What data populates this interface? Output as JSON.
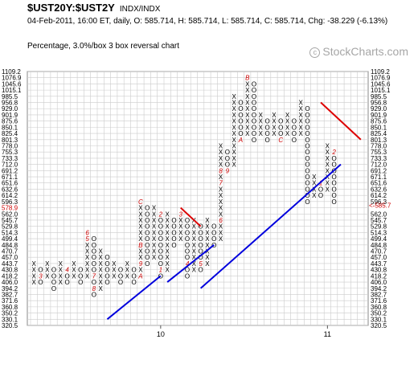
{
  "header": {
    "symbol": "$UST20Y:$UST2Y",
    "exchange": "INDX/INDX",
    "stats": "04-Feb-2011, 16:00 ET, daily, O: 585.714, H: 585.714, L: 585.714, C: 585.714, Chg: -38.229 (-6.13%)",
    "chart_type": "Percentage, 3.0%/box 3 box reversal chart",
    "watermark": "©StockCharts.com",
    "watermark_icon": "copyright-icon"
  },
  "colors": {
    "x_marks": "#000000",
    "o_marks": "#000000",
    "month_markers": "#cc0000",
    "support_lines": "#0000dd",
    "resistance_lines": "#dd0000",
    "grid": "#cccccc",
    "last_price": "#cc0000"
  },
  "chart_data": {
    "type": "point-and-figure",
    "box_size_percent": 3.0,
    "reversal_boxes": 3,
    "y_axis_scale": "log",
    "grid": true,
    "price_levels": [
      "1109.2",
      "1076.9",
      "1045.6",
      "1015.1",
      "985.5",
      "956.8",
      "929.0",
      "901.9",
      "875.6",
      "850.1",
      "825.4",
      "801.3",
      "778.0",
      "755.3",
      "733.3",
      "712.0",
      "691.2",
      "671.1",
      "651.6",
      "632.6",
      "614.2",
      "596.3",
      "578.9",
      "562.0",
      "545.7",
      "529.8",
      "514.3",
      "499.4",
      "484.8",
      "470.7",
      "457.0",
      "443.7",
      "430.8",
      "418.2",
      "406.0",
      "394.2",
      "382.7",
      "371.6",
      "360.8",
      "350.2",
      "330.1",
      "320.5"
    ],
    "last_price_label": "585.7",
    "last_price_value": 585.714,
    "previous_level": "578.9",
    "x_tick_labels": [
      {
        "label": "10",
        "column": 19
      },
      {
        "label": "11",
        "column": 44
      }
    ],
    "columns": [
      {
        "type": "X",
        "from": 34,
        "to": 31,
        "marks": {}
      },
      {
        "type": "O",
        "from": 32,
        "to": 34,
        "marks": {
          "33": "3"
        }
      },
      {
        "type": "X",
        "from": 33,
        "to": 31,
        "marks": {}
      },
      {
        "type": "O",
        "from": 32,
        "to": 35,
        "marks": {}
      },
      {
        "type": "X",
        "from": 34,
        "to": 31,
        "marks": {}
      },
      {
        "type": "O",
        "from": 32,
        "to": 34,
        "marks": {
          "32": "4"
        }
      },
      {
        "type": "X",
        "from": 33,
        "to": 31,
        "marks": {}
      },
      {
        "type": "O",
        "from": 32,
        "to": 34,
        "marks": {}
      },
      {
        "type": "X",
        "from": 33,
        "to": 26,
        "marks": {
          "26": "6",
          "27": "5"
        }
      },
      {
        "type": "O",
        "from": 27,
        "to": 36,
        "marks": {
          "33": "7",
          "35": "8"
        }
      },
      {
        "type": "X",
        "from": 35,
        "to": 29,
        "marks": {}
      },
      {
        "type": "O",
        "from": 30,
        "to": 34,
        "marks": {}
      },
      {
        "type": "X",
        "from": 33,
        "to": 31,
        "marks": {}
      },
      {
        "type": "O",
        "from": 32,
        "to": 34,
        "marks": {}
      },
      {
        "type": "X",
        "from": 33,
        "to": 31,
        "marks": {}
      },
      {
        "type": "O",
        "from": 32,
        "to": 34,
        "marks": {}
      },
      {
        "type": "X",
        "from": 33,
        "to": 21,
        "marks": {
          "21": "C",
          "28": "B",
          "31": "9",
          "33": "A"
        }
      },
      {
        "type": "O",
        "from": 22,
        "to": 31,
        "marks": {}
      },
      {
        "type": "X",
        "from": 30,
        "to": 22,
        "marks": {}
      },
      {
        "type": "O",
        "from": 23,
        "to": 33,
        "marks": {
          "23": "2",
          "32": "1"
        }
      },
      {
        "type": "X",
        "from": 32,
        "to": 23,
        "marks": {}
      },
      {
        "type": "O",
        "from": 24,
        "to": 28,
        "marks": {}
      },
      {
        "type": "X",
        "from": 27,
        "to": 23,
        "marks": {
          "23": "3"
        }
      },
      {
        "type": "O",
        "from": 24,
        "to": 33,
        "marks": {
          "31": "4"
        }
      },
      {
        "type": "X",
        "from": 32,
        "to": 24,
        "marks": {}
      },
      {
        "type": "O",
        "from": 25,
        "to": 32,
        "marks": {
          "31": "5"
        }
      },
      {
        "type": "X",
        "from": 31,
        "to": 24,
        "marks": {}
      },
      {
        "type": "O",
        "from": 25,
        "to": 28,
        "marks": {}
      },
      {
        "type": "X",
        "from": 27,
        "to": 12,
        "marks": {
          "24": "6",
          "18": "7",
          "16": "8"
        }
      },
      {
        "type": "O",
        "from": 13,
        "to": 16,
        "marks": {
          "16": "9"
        }
      },
      {
        "type": "X",
        "from": 15,
        "to": 4,
        "marks": {}
      },
      {
        "type": "O",
        "from": 5,
        "to": 11,
        "marks": {
          "11": "A"
        }
      },
      {
        "type": "X",
        "from": 10,
        "to": 1,
        "marks": {
          "1": "B"
        }
      },
      {
        "type": "O",
        "from": 2,
        "to": 11,
        "marks": {}
      },
      {
        "type": "X",
        "from": 10,
        "to": 7,
        "marks": {}
      },
      {
        "type": "O",
        "from": 8,
        "to": 11,
        "marks": {}
      },
      {
        "type": "X",
        "from": 10,
        "to": 7,
        "marks": {}
      },
      {
        "type": "O",
        "from": 8,
        "to": 11,
        "marks": {
          "11": "C"
        }
      },
      {
        "type": "X",
        "from": 10,
        "to": 7,
        "marks": {}
      },
      {
        "type": "O",
        "from": 8,
        "to": 11,
        "marks": {}
      },
      {
        "type": "X",
        "from": 10,
        "to": 5,
        "marks": {}
      },
      {
        "type": "O",
        "from": 6,
        "to": 21,
        "marks": {}
      },
      {
        "type": "X",
        "from": 20,
        "to": 17,
        "marks": {}
      },
      {
        "type": "O",
        "from": 18,
        "to": 20,
        "marks": {
          "18": "1"
        }
      },
      {
        "type": "X",
        "from": 19,
        "to": 12,
        "marks": {}
      },
      {
        "type": "O",
        "from": 13,
        "to": 21,
        "marks": {
          "13": "2"
        }
      }
    ],
    "trend_lines": [
      {
        "kind": "support",
        "points": [
          [
            11,
            40
          ],
          [
            19,
            33
          ]
        ]
      },
      {
        "kind": "support",
        "points": [
          [
            20,
            34
          ],
          [
            27,
            28
          ]
        ]
      },
      {
        "kind": "support",
        "points": [
          [
            25,
            35
          ],
          [
            46,
            15
          ]
        ]
      },
      {
        "kind": "resistance",
        "points": [
          [
            22,
            22
          ],
          [
            25,
            25
          ]
        ]
      },
      {
        "kind": "resistance",
        "points": [
          [
            43,
            5
          ],
          [
            49,
            11
          ]
        ]
      }
    ]
  }
}
